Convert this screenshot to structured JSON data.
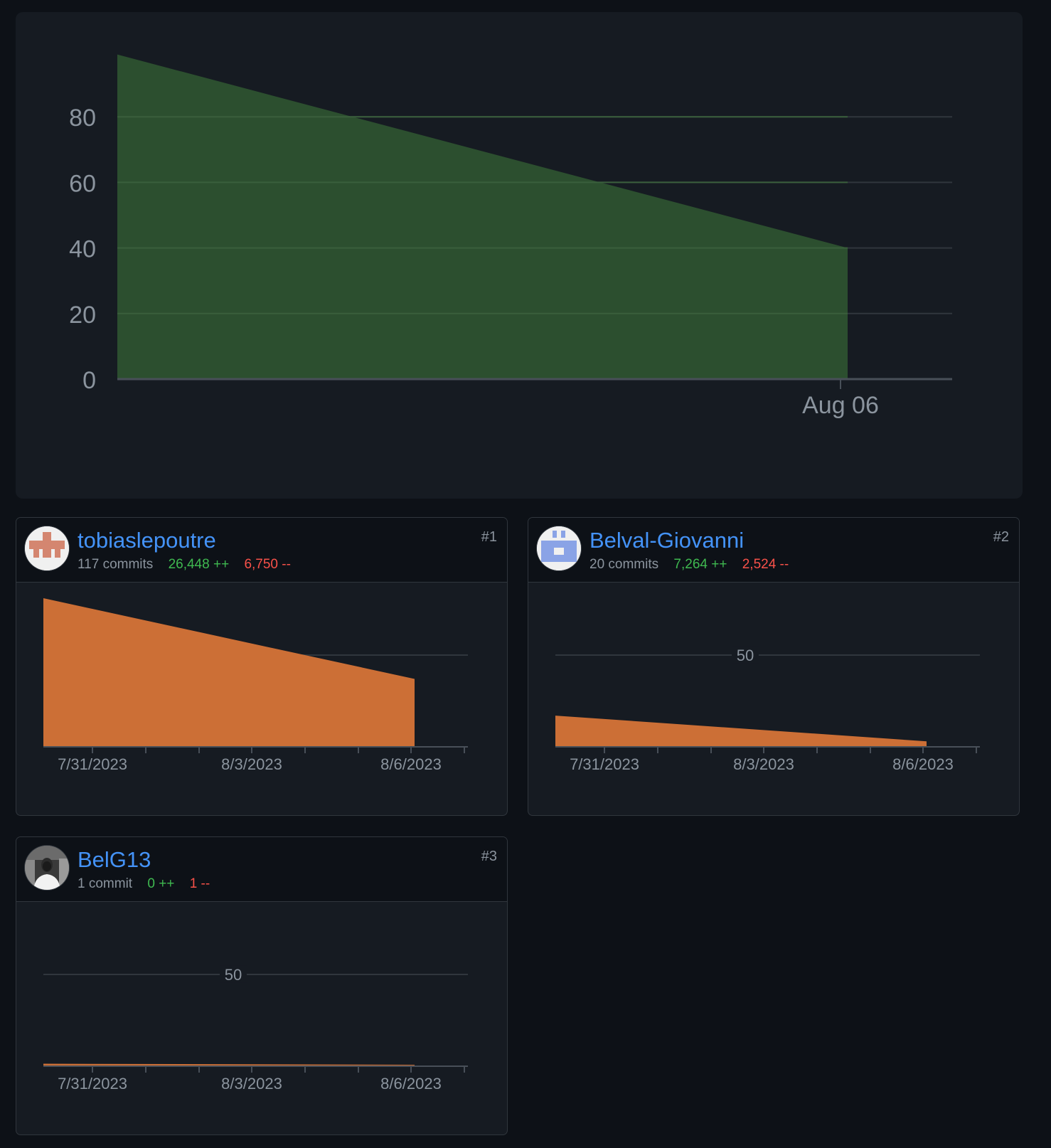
{
  "main_chart": {
    "fill_color": "#2c4f2f",
    "chart_data": {
      "type": "area",
      "x": [
        "Jul 30",
        "Aug 06"
      ],
      "y": [
        99,
        40
      ],
      "yticks": [
        0,
        20,
        40,
        60,
        80
      ],
      "ylim": [
        0,
        100
      ],
      "xtick_labels": [
        "Aug 06"
      ],
      "grid": true
    }
  },
  "contributors": [
    {
      "login": "tobiaslepoutre",
      "commits": "117 commits",
      "additions": "26,448 ++",
      "deletions": "6,750 --",
      "rank": "#1",
      "avatar_icon": "identicon-red-icon",
      "fill_color": "#cc6f36",
      "chart_data": {
        "type": "area",
        "x": [
          "7/30/2023",
          "8/6/2023"
        ],
        "y": [
          81,
          37
        ],
        "ylim": [
          0,
          81
        ],
        "yticks": [
          50
        ],
        "ytick_labels": [
          ""
        ],
        "xtick_labels": [
          "7/31/2023",
          "8/3/2023",
          "8/6/2023"
        ]
      }
    },
    {
      "login": "Belval-Giovanni",
      "commits": "20 commits",
      "additions": "7,264 ++",
      "deletions": "2,524 --",
      "rank": "#2",
      "avatar_icon": "identicon-blue-icon",
      "fill_color": "#cc6f36",
      "chart_data": {
        "type": "area",
        "x": [
          "7/30/2023",
          "8/6/2023"
        ],
        "y": [
          17,
          3
        ],
        "ylim": [
          0,
          81
        ],
        "yticks": [
          50
        ],
        "ytick_labels": [
          "50"
        ],
        "xtick_labels": [
          "7/31/2023",
          "8/3/2023",
          "8/6/2023"
        ]
      }
    },
    {
      "login": "BelG13",
      "commits": "1 commit",
      "additions": "0 ++",
      "deletions": "1 --",
      "rank": "#3",
      "avatar_icon": "user-photo-icon",
      "fill_color": "#cc6f36",
      "chart_data": {
        "type": "area",
        "x": [
          "7/30/2023",
          "8/6/2023"
        ],
        "y": [
          1,
          0
        ],
        "ylim": [
          0,
          81
        ],
        "yticks": [
          50
        ],
        "ytick_labels": [
          "50"
        ],
        "xtick_labels": [
          "7/31/2023",
          "8/3/2023",
          "8/6/2023"
        ]
      }
    }
  ]
}
